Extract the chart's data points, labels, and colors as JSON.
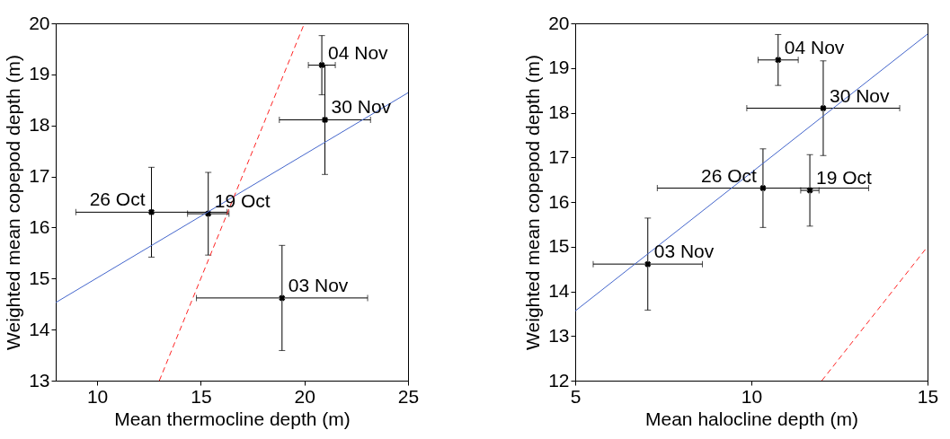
{
  "chart_data": [
    {
      "type": "scatter",
      "xlabel": "Mean thermocline depth (m)",
      "ylabel": "Weighted mean copepod depth (m)",
      "xlim": [
        8,
        25
      ],
      "ylim": [
        13,
        20
      ],
      "xticks": [
        10,
        15,
        20,
        25
      ],
      "yticks": [
        13,
        14,
        15,
        16,
        17,
        18,
        19,
        20
      ],
      "series": [
        {
          "marker": "cross",
          "color": "#000000",
          "x": [
            15.36,
            12.62,
            18.92,
            20.84,
            20.99
          ],
          "values": [
            16.27,
            16.3,
            14.62,
            19.18,
            18.11
          ],
          "errors": [
            0.81,
            0.88,
            1.03,
            0.58,
            1.07
          ],
          "xerrors": [
            1.0,
            3.65,
            4.13,
            0.65,
            2.2
          ]
        },
        {
          "type": "line",
          "color": "#4466cc",
          "line_style": "solid",
          "x": [
            8,
            25
          ],
          "values": [
            14.53,
            18.64
          ]
        },
        {
          "type": "line",
          "color": "#ff2222",
          "line_style": "dashed",
          "x": [
            13,
            20
          ],
          "values": [
            13,
            20
          ]
        }
      ],
      "annotations": [
        {
          "text": "19 Oct",
          "x": 15.36,
          "y": 16.27
        },
        {
          "text": "26 Oct",
          "x": 12.62,
          "y": 16.3
        },
        {
          "text": "03 Nov",
          "x": 18.92,
          "y": 14.62
        },
        {
          "text": "04 Nov",
          "x": 20.84,
          "y": 19.18
        },
        {
          "text": "30 Nov",
          "x": 20.99,
          "y": 18.11
        }
      ]
    },
    {
      "type": "scatter",
      "xlabel": "Mean halocline depth (m)",
      "ylabel": "Weighted mean copepod depth (m)",
      "xlim": [
        5,
        15
      ],
      "ylim": [
        12,
        20
      ],
      "xticks": [
        5,
        10,
        15
      ],
      "yticks": [
        12,
        13,
        14,
        15,
        16,
        17,
        18,
        19,
        20
      ],
      "series": [
        {
          "marker": "cross",
          "color": "#000000",
          "x": [
            11.66,
            10.33,
            7.06,
            10.76,
            12.04
          ],
          "values": [
            16.26,
            16.31,
            14.61,
            19.18,
            18.1
          ],
          "errors": [
            0.8,
            0.88,
            1.03,
            0.57,
            1.06
          ],
          "xerrors": [
            0.26,
            3.0,
            1.55,
            0.57,
            2.17
          ]
        },
        {
          "type": "line",
          "color": "#4466cc",
          "line_style": "solid",
          "x": [
            5,
            15
          ],
          "values": [
            13.56,
            19.76
          ]
        },
        {
          "type": "line",
          "color": "#ff2222",
          "line_style": "dashed",
          "x": [
            12,
            15
          ],
          "values": [
            12,
            15
          ]
        }
      ],
      "annotations": [
        {
          "text": "19 Oct",
          "x": 11.66,
          "y": 16.26
        },
        {
          "text": "26 Oct",
          "x": 10.33,
          "y": 16.31
        },
        {
          "text": "03 Nov",
          "x": 7.06,
          "y": 14.61
        },
        {
          "text": "04 Nov",
          "x": 10.76,
          "y": 19.18
        },
        {
          "text": "30 Nov",
          "x": 12.04,
          "y": 18.1
        }
      ]
    }
  ]
}
